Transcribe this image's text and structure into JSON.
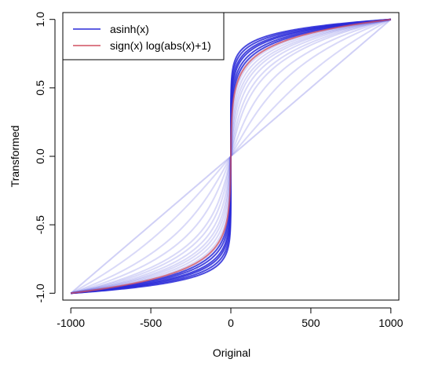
{
  "chart_data": {
    "type": "line",
    "title": "",
    "xlabel": "Original",
    "ylabel": "Transformed",
    "xlim": [
      -1050,
      1050
    ],
    "ylim": [
      -1.05,
      1.05
    ],
    "x_ticks": [
      -1000,
      -500,
      0,
      500,
      1000
    ],
    "x_tick_labels": [
      "-1000",
      "-500",
      "0",
      "500",
      "1000"
    ],
    "y_ticks": [
      -1.0,
      -0.5,
      0.0,
      0.5,
      1.0
    ],
    "y_tick_labels": [
      "-1.0",
      "-0.5",
      "0.0",
      "0.5",
      "1.0"
    ],
    "grid": false,
    "legend_position": "top-left",
    "colors": {
      "asinh": "#2a2ad8",
      "signlog": "#d05060",
      "axis": "#000000"
    },
    "series": [
      {
        "name": "asinh(x)",
        "color_key": "asinh",
        "formula": "asinh(k*x)/asinh(k*1000)",
        "scales": [
          0.0001,
          0.002,
          0.005,
          0.01,
          0.02,
          0.03,
          0.05,
          0.08,
          0.12,
          0.2,
          0.35,
          0.6,
          1,
          2,
          5,
          10,
          30,
          100
        ]
      },
      {
        "name": "sign(x) log(abs(x)+1)",
        "color_key": "signlog",
        "formula": "sign(x)*log(abs(x)+1)/log(1001)",
        "scales": [
          1
        ]
      }
    ]
  }
}
